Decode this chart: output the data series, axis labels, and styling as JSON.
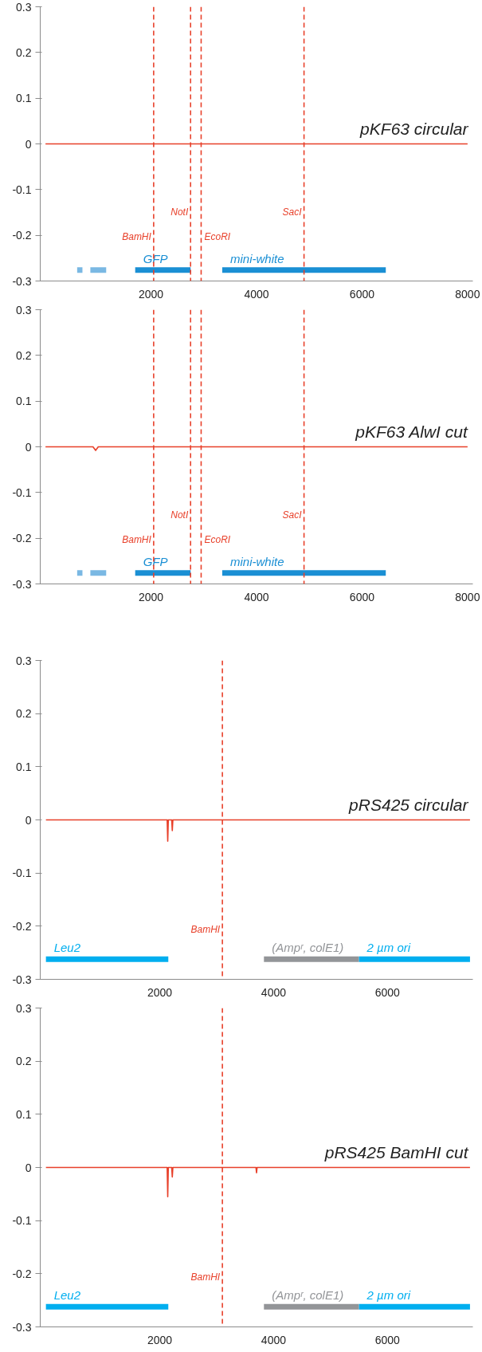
{
  "chart_data": [
    {
      "type": "line",
      "title": "pKF63 circular",
      "xlim": [
        -100,
        8100
      ],
      "ylim": [
        -0.3,
        0.3
      ],
      "xticks": [
        2000,
        4000,
        6000,
        8000
      ],
      "yticks": [
        -0.3,
        -0.2,
        -0.1,
        0,
        0.1,
        0.2,
        0.3
      ],
      "grid": false,
      "legend": false,
      "series": [
        {
          "color": "#e8402a",
          "x": [
            0,
            8000
          ],
          "values": [
            0,
            0
          ]
        },
        {
          "color": "#7ab8e3",
          "x": [
            600,
            700
          ],
          "values": [
            -0.276,
            -0.276
          ]
        },
        {
          "color": "#7ab8e3",
          "x": [
            850,
            1150
          ],
          "values": [
            -0.276,
            -0.276
          ]
        },
        {
          "name": "GFP",
          "color": "#1a8fd4",
          "x": [
            1700,
            2750
          ],
          "values": [
            -0.276,
            -0.276
          ]
        },
        {
          "name": "mini-white",
          "color": "#1a8fd4",
          "x": [
            3350,
            6450
          ],
          "values": [
            -0.276,
            -0.276
          ]
        }
      ],
      "ref_lines": [
        {
          "axis": "x",
          "value": 2050,
          "label": "BamHI",
          "color": "#e8402a",
          "line_style": "dashed"
        },
        {
          "axis": "x",
          "value": 2750,
          "label": "NotI",
          "color": "#e8402a",
          "line_style": "dashed"
        },
        {
          "axis": "x",
          "value": 2950,
          "label": "EcoRI",
          "color": "#e8402a",
          "line_style": "dashed"
        },
        {
          "axis": "x",
          "value": 4900,
          "label": "SacI",
          "color": "#e8402a",
          "line_style": "dashed"
        }
      ]
    },
    {
      "type": "line",
      "title": "pKF63 AlwI cut",
      "xlim": [
        -100,
        8100
      ],
      "ylim": [
        -0.3,
        0.3
      ],
      "xticks": [
        2000,
        4000,
        6000,
        8000
      ],
      "yticks": [
        -0.3,
        -0.2,
        -0.1,
        0,
        0.1,
        0.2,
        0.3
      ],
      "grid": false,
      "legend": false,
      "series": [
        {
          "color": "#e8402a",
          "x": [
            0,
            900,
            950,
            1000,
            8000
          ],
          "values": [
            0,
            0,
            -0.008,
            0,
            0
          ]
        },
        {
          "color": "#7ab8e3",
          "x": [
            600,
            700
          ],
          "values": [
            -0.276,
            -0.276
          ]
        },
        {
          "color": "#7ab8e3",
          "x": [
            850,
            1150
          ],
          "values": [
            -0.276,
            -0.276
          ]
        },
        {
          "name": "GFP",
          "color": "#1a8fd4",
          "x": [
            1700,
            2750
          ],
          "values": [
            -0.276,
            -0.276
          ]
        },
        {
          "name": "mini-white",
          "color": "#1a8fd4",
          "x": [
            3350,
            6450
          ],
          "values": [
            -0.276,
            -0.276
          ]
        }
      ],
      "ref_lines": [
        {
          "axis": "x",
          "value": 2050,
          "label": "BamHI",
          "color": "#e8402a",
          "line_style": "dashed"
        },
        {
          "axis": "x",
          "value": 2750,
          "label": "NotI",
          "color": "#e8402a",
          "line_style": "dashed"
        },
        {
          "axis": "x",
          "value": 2950,
          "label": "EcoRI",
          "color": "#e8402a",
          "line_style": "dashed"
        },
        {
          "axis": "x",
          "value": 4900,
          "label": "SacI",
          "color": "#e8402a",
          "line_style": "dashed"
        }
      ]
    },
    {
      "type": "line",
      "title": "pRS425 circular",
      "xlim": [
        -100,
        7500
      ],
      "ylim": [
        -0.3,
        0.3
      ],
      "xticks": [
        2000,
        4000,
        6000
      ],
      "yticks": [
        -0.3,
        -0.2,
        -0.1,
        0,
        0.1,
        0.2,
        0.3
      ],
      "grid": false,
      "legend": false,
      "series": [
        {
          "color": "#e8402a",
          "x": [
            0,
            2130,
            2140,
            2150,
            2210,
            2220,
            2230,
            7450
          ],
          "values": [
            0,
            0,
            -0.04,
            0,
            0,
            -0.02,
            0,
            0
          ]
        },
        {
          "name": "Leu2",
          "color": "#00aeef",
          "x": [
            0,
            2150
          ],
          "values": [
            -0.262,
            -0.262
          ]
        },
        {
          "name": "(Ampʳ, colE1)",
          "color": "#939598",
          "x": [
            3830,
            5500
          ],
          "values": [
            -0.262,
            -0.262
          ]
        },
        {
          "name": "2 µm ori",
          "color": "#00aeef",
          "x": [
            5500,
            7450
          ],
          "values": [
            -0.262,
            -0.262
          ]
        }
      ],
      "ref_lines": [
        {
          "axis": "x",
          "value": 3100,
          "label": "BamHI",
          "color": "#e8402a",
          "line_style": "dashed"
        }
      ]
    },
    {
      "type": "line",
      "title": "pRS425 BamHI cut",
      "xlim": [
        -100,
        7500
      ],
      "ylim": [
        -0.3,
        0.3
      ],
      "xticks": [
        2000,
        4000,
        6000
      ],
      "yticks": [
        -0.3,
        -0.2,
        -0.1,
        0,
        0.1,
        0.2,
        0.3
      ],
      "grid": false,
      "legend": false,
      "series": [
        {
          "color": "#e8402a",
          "x": [
            0,
            2130,
            2140,
            2150,
            2210,
            2220,
            2230,
            3690,
            3700,
            3710,
            7450
          ],
          "values": [
            0,
            0,
            -0.055,
            0,
            0,
            -0.018,
            0,
            0,
            -0.01,
            0,
            0
          ]
        },
        {
          "name": "Leu2",
          "color": "#00aeef",
          "x": [
            0,
            2150
          ],
          "values": [
            -0.262,
            -0.262
          ]
        },
        {
          "name": "(Ampʳ, colE1)",
          "color": "#939598",
          "x": [
            3830,
            5500
          ],
          "values": [
            -0.262,
            -0.262
          ]
        },
        {
          "name": "2 µm ori",
          "color": "#00aeef",
          "x": [
            5500,
            7450
          ],
          "values": [
            -0.262,
            -0.262
          ]
        }
      ],
      "ref_lines": [
        {
          "axis": "x",
          "value": 3100,
          "label": "BamHI",
          "color": "#e8402a",
          "line_style": "dashed"
        }
      ]
    }
  ]
}
